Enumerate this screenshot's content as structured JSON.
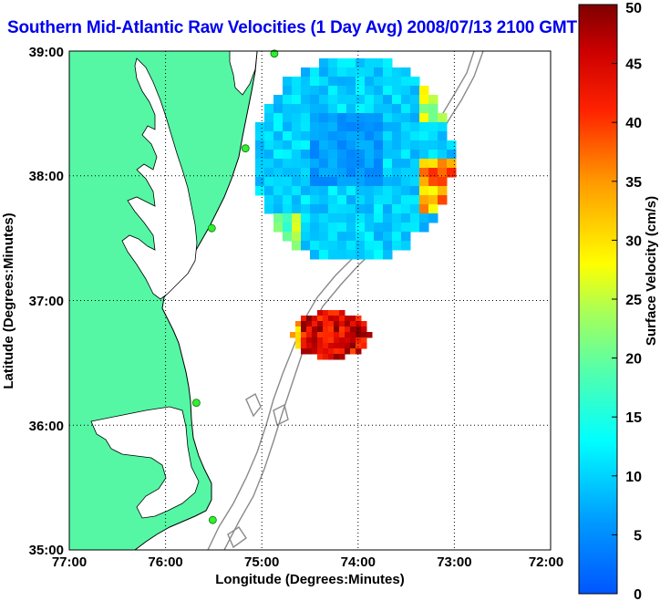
{
  "title": "Southern Mid-Atlantic Raw Velocities (1 Day Avg) 2008/07/13 2100 GMT",
  "x_axis": {
    "label": "Longitude (Degrees:Minutes)",
    "ticks": [
      "77:00",
      "76:00",
      "75:00",
      "74:00",
      "73:00",
      "72:00"
    ]
  },
  "y_axis": {
    "label": "Latitude (Degrees:Minutes)",
    "ticks": [
      "39:00",
      "38:00",
      "37:00",
      "36:00",
      "35:00"
    ]
  },
  "colorbar": {
    "label": "Surface Velocity (cm/s)",
    "ticks": [
      "50",
      "45",
      "40",
      "35",
      "30",
      "25",
      "20",
      "15",
      "10",
      "5",
      "0"
    ],
    "min": 0,
    "max": 50
  },
  "map": {
    "lon_range": [
      -77,
      -72
    ],
    "lat_range": [
      35,
      39
    ],
    "grid": true,
    "colors": {
      "land": "#55f7a5",
      "water": "#ffffff",
      "bathymetry": "#8a8a8a",
      "coastline": "#000000",
      "site_marker": "#33ee33"
    },
    "station_markers": [
      {
        "lon": -74.87,
        "lat": 38.98
      },
      {
        "lon": -75.17,
        "lat": 38.22
      },
      {
        "lon": -75.52,
        "lat": 37.58
      },
      {
        "lon": -75.68,
        "lat": 36.18
      },
      {
        "lon": -75.51,
        "lat": 35.24
      }
    ]
  }
}
